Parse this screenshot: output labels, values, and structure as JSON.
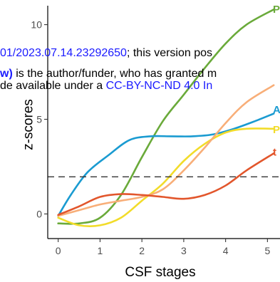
{
  "chart_data": {
    "type": "line",
    "xlabel": "CSF stages",
    "ylabel": "z-scores",
    "xlim": [
      -0.25,
      5.3
    ],
    "ylim": [
      -1.3,
      11
    ],
    "xticks": [
      0,
      1,
      2,
      3,
      4,
      5
    ],
    "yticks": [
      0,
      5,
      10
    ],
    "threshold": 1.96,
    "threshold_style": "dashed",
    "grid": false,
    "series": [
      {
        "name": "P",
        "color": "#6aaa3a",
        "x": [
          0,
          0.5,
          1,
          1.5,
          2,
          2.5,
          3,
          3.5,
          4,
          4.5,
          5.15
        ],
        "values": [
          -0.5,
          -0.5,
          -0.2,
          1.0,
          3.0,
          4.9,
          6.3,
          7.7,
          9.0,
          10.0,
          10.8
        ]
      },
      {
        "name": "A",
        "color": "#1a9bd1",
        "x": [
          0,
          0.3,
          0.7,
          1.2,
          1.7,
          2.2,
          2.7,
          3.2,
          3.7,
          4.2,
          4.7,
          5.15
        ],
        "values": [
          -0.1,
          1.0,
          2.2,
          3.1,
          3.9,
          4.1,
          4.1,
          4.1,
          4.2,
          4.5,
          4.9,
          5.3
        ]
      },
      {
        "name": "P",
        "color": "#f2dc2a",
        "x": [
          0,
          0.5,
          1,
          1.5,
          2,
          2.5,
          3,
          3.5,
          4,
          4.5,
          5.15
        ],
        "values": [
          -0.2,
          -0.6,
          -0.6,
          -0.2,
          0.7,
          1.6,
          2.8,
          3.7,
          4.3,
          4.5,
          4.5
        ]
      },
      {
        "name": "",
        "color": "#f8ae78",
        "x": [
          0,
          0.5,
          1,
          1.5,
          2,
          2.5,
          3,
          3.5,
          4,
          4.5,
          5.15
        ],
        "values": [
          -0.1,
          0.2,
          0.5,
          0.7,
          0.9,
          1.3,
          2.3,
          3.5,
          4.8,
          5.9,
          6.8
        ]
      },
      {
        "name": "t",
        "color": "#e2562c",
        "x": [
          0,
          0.5,
          1,
          1.5,
          2,
          2.5,
          3,
          3.5,
          4,
          4.5,
          5.15
        ],
        "values": [
          -0.05,
          0.4,
          0.9,
          1.05,
          1.0,
          0.9,
          0.8,
          1.0,
          1.5,
          2.3,
          3.2
        ]
      }
    ],
    "series_labels": [
      {
        "text": "P",
        "color": "#6aaa3a",
        "y": 10.85
      },
      {
        "text": "A",
        "color": "#1a9bd1",
        "y": 5.55
      },
      {
        "text": "P",
        "color": "#f2dc2a",
        "y": 4.5
      },
      {
        "text": "t",
        "color": "#e2562c",
        "y": 3.3
      }
    ]
  },
  "watermark": {
    "line1_link": "01/2023.07.14.23292650",
    "line1_rest": "; this version pos",
    "line2_bold": "w)",
    "line2_rest": " is the author/funder, who has granted m",
    "line3_start": "de available under a ",
    "line3_link": "CC-BY-NC-ND 4.0 In"
  }
}
